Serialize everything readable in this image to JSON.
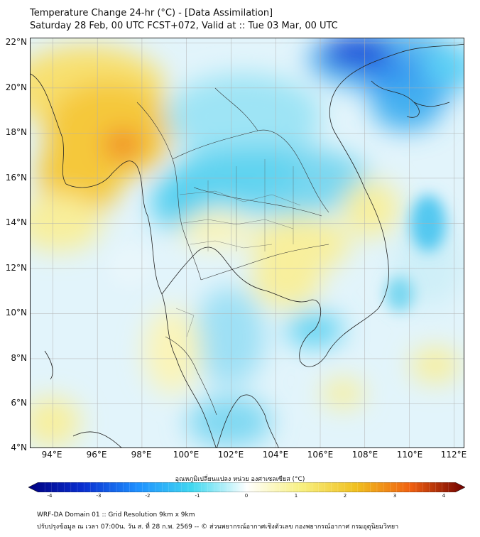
{
  "title": {
    "line1": "Temperature Change 24-hr (°C) - [Data Assimilation]",
    "line2": "Saturday 28 Feb, 00 UTC FCST+072, Valid at :: Tue 03 Mar, 00 UTC"
  },
  "axes": {
    "lat_labels": [
      "22°N",
      "20°N",
      "18°N",
      "16°N",
      "14°N",
      "12°N",
      "10°N",
      "8°N",
      "6°N",
      "4°N"
    ],
    "lon_labels": [
      "94°E",
      "96°E",
      "98°E",
      "100°E",
      "102°E",
      "104°E",
      "106°E",
      "108°E",
      "110°E",
      "112°E"
    ],
    "lat_range": [
      4,
      22.2
    ],
    "lon_range": [
      93,
      112.5
    ]
  },
  "colorbar": {
    "title": "อุณหภูมิเปลี่ยนแปลง หน่วย องศาเซลเซียส (°C)",
    "ticks": [
      "-4",
      "-3",
      "-2",
      "-1",
      "0",
      "1",
      "2",
      "3",
      "4"
    ],
    "range": [
      -4,
      4
    ],
    "colors": {
      "neg4": "#000080",
      "neg3": "#0a2fd0",
      "neg2": "#1e90ff",
      "neg1": "#40d8f0",
      "zero": "#ffffff",
      "pos1": "#f8f080",
      "pos2": "#f0c020",
      "pos3": "#f06010",
      "pos4": "#700000"
    }
  },
  "footer": {
    "line1": "WRF-DA Domain 01 :: Grid Resolution 9km x 9km",
    "line2": "ปรับปรุงข้อมูล ณ เวลา 07:00น. วัน ส. ที่ 28 ก.พ. 2569 -- © ส่วนพยากรณ์อากาศเชิงตัวเลข กองพยากรณ์อากาศ กรมอุตุนิยมวิทยา"
  }
}
